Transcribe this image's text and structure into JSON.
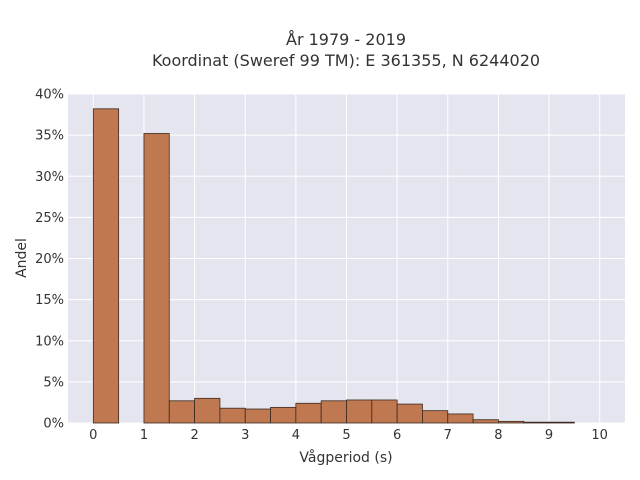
{
  "chart_data": {
    "type": "bar",
    "title_lines": [
      "År 1979 - 2019",
      "Koordinat (Sweref 99 TM): E 361355, N 6244020"
    ],
    "xlabel": "Vågperiod (s)",
    "ylabel": "Andel",
    "xlim": [
      -0.5,
      10.5
    ],
    "ylim": [
      0,
      40
    ],
    "x_ticks": [
      "0",
      "1",
      "2",
      "3",
      "4",
      "5",
      "6",
      "7",
      "8",
      "9",
      "10"
    ],
    "y_ticks": [
      "0%",
      "5%",
      "10%",
      "15%",
      "20%",
      "25%",
      "30%",
      "35%",
      "40%"
    ],
    "bin_width": 0.5,
    "bins": [
      {
        "start": 0.0,
        "value": 38.2
      },
      {
        "start": 1.0,
        "value": 35.2
      },
      {
        "start": 1.5,
        "value": 2.7
      },
      {
        "start": 2.0,
        "value": 3.0
      },
      {
        "start": 2.5,
        "value": 1.8
      },
      {
        "start": 3.0,
        "value": 1.7
      },
      {
        "start": 3.5,
        "value": 1.9
      },
      {
        "start": 4.0,
        "value": 2.4
      },
      {
        "start": 4.5,
        "value": 2.7
      },
      {
        "start": 5.0,
        "value": 2.8
      },
      {
        "start": 5.5,
        "value": 2.8
      },
      {
        "start": 6.0,
        "value": 2.3
      },
      {
        "start": 6.5,
        "value": 1.5
      },
      {
        "start": 7.0,
        "value": 1.1
      },
      {
        "start": 7.5,
        "value": 0.4
      },
      {
        "start": 8.0,
        "value": 0.2
      },
      {
        "start": 8.5,
        "value": 0.1
      },
      {
        "start": 9.0,
        "value": 0.1
      }
    ],
    "bar_color": "#c07850",
    "bar_edge_color": "#3a2a20",
    "plot_background": "#e5e5f0",
    "grid": true
  }
}
